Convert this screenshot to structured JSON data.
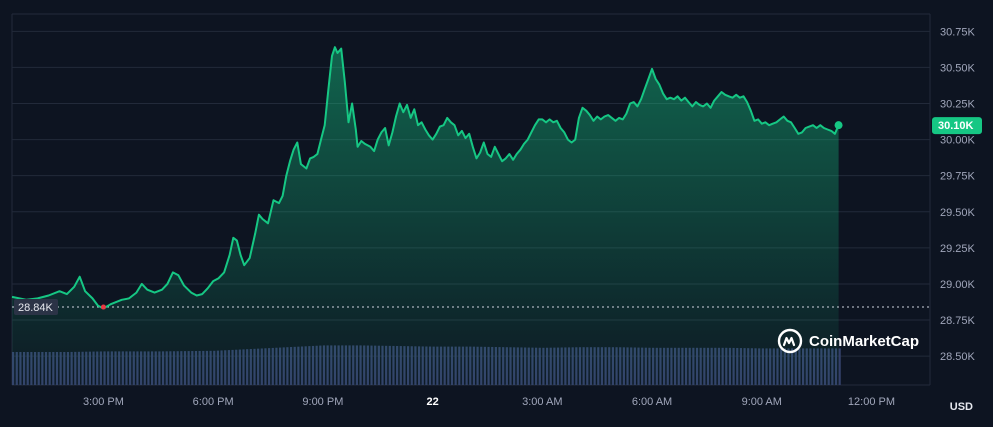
{
  "currency": "USD",
  "watermark": {
    "text": "CoinMarketCap",
    "icon": "coinmarketcap-logo-icon"
  },
  "colors": {
    "background": "#0d1421",
    "line": "#16c784",
    "area_top": "#16c784",
    "volume": "#34406a",
    "grid": "#222a3a",
    "badge": "#16c784",
    "ref_badge": "#2b3346",
    "down_marker": "#ea3943"
  },
  "chart_data": {
    "type": "area",
    "y_ticks": [
      "30.75K",
      "30.50K",
      "30.25K",
      "30.00K",
      "29.75K",
      "29.50K",
      "29.25K",
      "29.00K",
      "28.75K",
      "28.50K"
    ],
    "y_tick_values": [
      30750,
      30500,
      30250,
      30000,
      29750,
      29500,
      29250,
      29000,
      28750,
      28500
    ],
    "ylim": [
      28300,
      30870
    ],
    "x_ticks": [
      {
        "label": "3:00 PM",
        "t": 15
      },
      {
        "label": "6:00 PM",
        "t": 18
      },
      {
        "label": "9:00 PM",
        "t": 21
      },
      {
        "label": "22",
        "t": 24,
        "bold": true
      },
      {
        "label": "3:00 AM",
        "t": 27
      },
      {
        "label": "6:00 AM",
        "t": 30
      },
      {
        "label": "9:00 AM",
        "t": 33
      },
      {
        "label": "12:00 PM",
        "t": 36
      }
    ],
    "xlim": [
      12.5,
      37.6
    ],
    "current_price_label": "30.10K",
    "current_price": 30100,
    "reference_label": "28.84K",
    "reference_price": 28840,
    "series": [
      {
        "values": [
          [
            12.5,
            28910
          ],
          [
            12.9,
            28890
          ],
          [
            13.2,
            28900
          ],
          [
            13.5,
            28920
          ],
          [
            13.8,
            28950
          ],
          [
            14.0,
            28930
          ],
          [
            14.2,
            28980
          ],
          [
            14.35,
            29050
          ],
          [
            14.5,
            28950
          ],
          [
            14.7,
            28900
          ],
          [
            14.85,
            28850
          ],
          [
            15.0,
            28830
          ],
          [
            15.2,
            28860
          ],
          [
            15.5,
            28890
          ],
          [
            15.7,
            28900
          ],
          [
            15.9,
            28940
          ],
          [
            16.05,
            29000
          ],
          [
            16.2,
            28960
          ],
          [
            16.4,
            28940
          ],
          [
            16.6,
            28960
          ],
          [
            16.75,
            29000
          ],
          [
            16.9,
            29080
          ],
          [
            17.05,
            29060
          ],
          [
            17.2,
            28990
          ],
          [
            17.4,
            28940
          ],
          [
            17.55,
            28920
          ],
          [
            17.7,
            28930
          ],
          [
            17.85,
            28970
          ],
          [
            18.0,
            29020
          ],
          [
            18.15,
            29040
          ],
          [
            18.3,
            29080
          ],
          [
            18.45,
            29200
          ],
          [
            18.55,
            29320
          ],
          [
            18.65,
            29300
          ],
          [
            18.75,
            29200
          ],
          [
            18.85,
            29130
          ],
          [
            19.0,
            29180
          ],
          [
            19.15,
            29350
          ],
          [
            19.25,
            29480
          ],
          [
            19.35,
            29450
          ],
          [
            19.5,
            29420
          ],
          [
            19.65,
            29580
          ],
          [
            19.8,
            29560
          ],
          [
            19.9,
            29610
          ],
          [
            20.0,
            29750
          ],
          [
            20.1,
            29850
          ],
          [
            20.2,
            29930
          ],
          [
            20.3,
            29980
          ],
          [
            20.4,
            29830
          ],
          [
            20.55,
            29800
          ],
          [
            20.65,
            29870
          ],
          [
            20.75,
            29880
          ],
          [
            20.85,
            29900
          ],
          [
            20.95,
            30000
          ],
          [
            21.05,
            30100
          ],
          [
            21.15,
            30350
          ],
          [
            21.25,
            30580
          ],
          [
            21.33,
            30640
          ],
          [
            21.4,
            30600
          ],
          [
            21.5,
            30630
          ],
          [
            21.6,
            30400
          ],
          [
            21.7,
            30120
          ],
          [
            21.8,
            30250
          ],
          [
            21.9,
            30070
          ],
          [
            21.95,
            29950
          ],
          [
            22.05,
            29990
          ],
          [
            22.15,
            29970
          ],
          [
            22.3,
            29950
          ],
          [
            22.4,
            29920
          ],
          [
            22.5,
            30000
          ],
          [
            22.6,
            30050
          ],
          [
            22.7,
            30080
          ],
          [
            22.8,
            29960
          ],
          [
            22.9,
            30050
          ],
          [
            23.0,
            30160
          ],
          [
            23.1,
            30250
          ],
          [
            23.2,
            30190
          ],
          [
            23.3,
            30240
          ],
          [
            23.4,
            30150
          ],
          [
            23.5,
            30210
          ],
          [
            23.6,
            30100
          ],
          [
            23.7,
            30120
          ],
          [
            23.8,
            30070
          ],
          [
            23.9,
            30030
          ],
          [
            24.0,
            30000
          ],
          [
            24.1,
            30040
          ],
          [
            24.2,
            30090
          ],
          [
            24.3,
            30100
          ],
          [
            24.4,
            30150
          ],
          [
            24.5,
            30120
          ],
          [
            24.6,
            30100
          ],
          [
            24.7,
            30030
          ],
          [
            24.8,
            30060
          ],
          [
            24.9,
            30010
          ],
          [
            25.0,
            30040
          ],
          [
            25.1,
            29950
          ],
          [
            25.2,
            29870
          ],
          [
            25.3,
            29910
          ],
          [
            25.4,
            29980
          ],
          [
            25.5,
            29900
          ],
          [
            25.6,
            29880
          ],
          [
            25.7,
            29950
          ],
          [
            25.8,
            29900
          ],
          [
            25.9,
            29850
          ],
          [
            26.0,
            29870
          ],
          [
            26.1,
            29900
          ],
          [
            26.2,
            29860
          ],
          [
            26.3,
            29900
          ],
          [
            26.4,
            29930
          ],
          [
            26.5,
            29970
          ],
          [
            26.6,
            30000
          ],
          [
            26.7,
            30050
          ],
          [
            26.8,
            30100
          ],
          [
            26.9,
            30140
          ],
          [
            27.0,
            30140
          ],
          [
            27.1,
            30120
          ],
          [
            27.2,
            30140
          ],
          [
            27.3,
            30120
          ],
          [
            27.4,
            30130
          ],
          [
            27.5,
            30080
          ],
          [
            27.6,
            30050
          ],
          [
            27.7,
            30000
          ],
          [
            27.8,
            29980
          ],
          [
            27.9,
            30000
          ],
          [
            28.0,
            30150
          ],
          [
            28.1,
            30220
          ],
          [
            28.2,
            30200
          ],
          [
            28.3,
            30170
          ],
          [
            28.4,
            30130
          ],
          [
            28.5,
            30160
          ],
          [
            28.6,
            30140
          ],
          [
            28.7,
            30160
          ],
          [
            28.8,
            30170
          ],
          [
            28.9,
            30150
          ],
          [
            29.0,
            30130
          ],
          [
            29.1,
            30150
          ],
          [
            29.2,
            30140
          ],
          [
            29.3,
            30180
          ],
          [
            29.4,
            30250
          ],
          [
            29.5,
            30260
          ],
          [
            29.6,
            30230
          ],
          [
            29.7,
            30280
          ],
          [
            29.8,
            30350
          ],
          [
            29.9,
            30420
          ],
          [
            30.0,
            30490
          ],
          [
            30.1,
            30420
          ],
          [
            30.2,
            30380
          ],
          [
            30.3,
            30320
          ],
          [
            30.4,
            30280
          ],
          [
            30.5,
            30290
          ],
          [
            30.6,
            30280
          ],
          [
            30.7,
            30300
          ],
          [
            30.8,
            30270
          ],
          [
            30.9,
            30290
          ],
          [
            31.0,
            30260
          ],
          [
            31.1,
            30230
          ],
          [
            31.2,
            30260
          ],
          [
            31.3,
            30240
          ],
          [
            31.4,
            30230
          ],
          [
            31.5,
            30250
          ],
          [
            31.6,
            30220
          ],
          [
            31.7,
            30270
          ],
          [
            31.8,
            30300
          ],
          [
            31.9,
            30330
          ],
          [
            32.0,
            30310
          ],
          [
            32.1,
            30300
          ],
          [
            32.2,
            30290
          ],
          [
            32.3,
            30310
          ],
          [
            32.4,
            30290
          ],
          [
            32.5,
            30300
          ],
          [
            32.6,
            30260
          ],
          [
            32.7,
            30200
          ],
          [
            32.8,
            30130
          ],
          [
            32.9,
            30140
          ],
          [
            33.0,
            30110
          ],
          [
            33.1,
            30120
          ],
          [
            33.2,
            30100
          ],
          [
            33.3,
            30110
          ],
          [
            33.4,
            30120
          ],
          [
            33.5,
            30140
          ],
          [
            33.6,
            30160
          ],
          [
            33.7,
            30130
          ],
          [
            33.8,
            30120
          ],
          [
            33.9,
            30080
          ],
          [
            34.0,
            30040
          ],
          [
            34.1,
            30050
          ],
          [
            34.2,
            30080
          ],
          [
            34.3,
            30090
          ],
          [
            34.4,
            30100
          ],
          [
            34.5,
            30080
          ],
          [
            34.6,
            30100
          ],
          [
            34.7,
            30080
          ],
          [
            34.8,
            30070
          ],
          [
            34.9,
            30060
          ],
          [
            35.0,
            30040
          ],
          [
            35.1,
            30100
          ]
        ]
      }
    ],
    "volume": {
      "ylim": [
        0,
        100
      ],
      "values": [
        [
          12.5,
          55
        ],
        [
          14.0,
          55
        ],
        [
          15.0,
          56
        ],
        [
          16.5,
          56
        ],
        [
          18.0,
          57
        ],
        [
          19.0,
          60
        ],
        [
          20.0,
          63
        ],
        [
          21.0,
          66
        ],
        [
          22.0,
          66
        ],
        [
          23.0,
          65
        ],
        [
          24.0,
          64
        ],
        [
          25.0,
          64
        ],
        [
          26.0,
          63
        ],
        [
          27.0,
          62
        ],
        [
          28.0,
          63
        ],
        [
          29.0,
          63
        ],
        [
          30.0,
          62
        ],
        [
          31.0,
          62
        ],
        [
          32.0,
          62
        ],
        [
          33.0,
          61
        ],
        [
          34.0,
          61
        ],
        [
          35.2,
          61
        ]
      ]
    }
  }
}
